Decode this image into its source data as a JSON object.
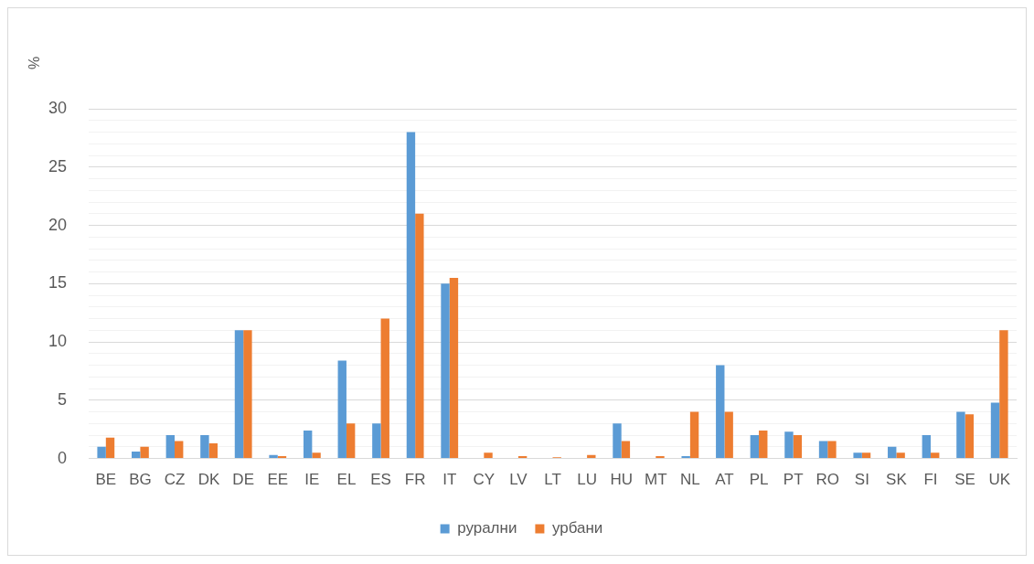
{
  "chart_data": {
    "type": "bar",
    "ylabel": "%",
    "categories": [
      "BE",
      "BG",
      "CZ",
      "DK",
      "DE",
      "EE",
      "IE",
      "EL",
      "ES",
      "FR",
      "IT",
      "CY",
      "LV",
      "LT",
      "LU",
      "HU",
      "MT",
      "NL",
      "AT",
      "PL",
      "PT",
      "RO",
      "SI",
      "SK",
      "FI",
      "SE",
      "UK"
    ],
    "series": [
      {
        "name": "рурални",
        "color": "#5b9bd5",
        "values": [
          1,
          0.6,
          2,
          2,
          11,
          0.3,
          2.4,
          8.4,
          3,
          28,
          15,
          0,
          0,
          0,
          0,
          3,
          0,
          0.2,
          8,
          2,
          2.3,
          1.5,
          0.5,
          1,
          2,
          4,
          4.8
        ]
      },
      {
        "name": "урбани",
        "color": "#ed7d31",
        "values": [
          1.8,
          1,
          1.5,
          1.3,
          11,
          0.2,
          0.5,
          3,
          12,
          21,
          15.5,
          0.5,
          0.2,
          0.1,
          0.3,
          1.5,
          0.2,
          4,
          4,
          2.4,
          2,
          1.5,
          0.5,
          0.5,
          0.5,
          3.8,
          11
        ]
      }
    ],
    "ylim": [
      0,
      30
    ],
    "yticks": [
      0,
      {
        "value": 1,
        "label": null
      },
      {
        "value": 2,
        "label": null
      },
      {
        "value": 3,
        "label": null
      },
      {
        "value": 4,
        "label": null
      },
      5,
      {
        "value": 6,
        "label": null
      },
      {
        "value": 7,
        "label": null
      },
      {
        "value": 8,
        "label": null
      },
      {
        "value": 9,
        "label": null
      },
      10,
      {
        "value": 11,
        "label": null
      },
      {
        "value": 12,
        "label": null
      },
      {
        "value": 13,
        "label": null
      },
      {
        "value": 14,
        "label": null
      },
      15,
      {
        "value": 16,
        "label": null
      },
      {
        "value": 17,
        "label": null
      },
      {
        "value": 18,
        "label": null
      },
      {
        "value": 19,
        "label": null
      },
      20,
      {
        "value": 21,
        "label": null
      },
      {
        "value": 22,
        "label": null
      },
      {
        "value": 23,
        "label": null
      },
      {
        "value": 24,
        "label": null
      },
      25,
      {
        "value": 26,
        "label": null
      },
      {
        "value": 27,
        "label": null
      },
      {
        "value": 28,
        "label": null
      },
      {
        "value": 29,
        "label": null
      },
      30
    ],
    "grid": "y",
    "legend": "bottom"
  }
}
